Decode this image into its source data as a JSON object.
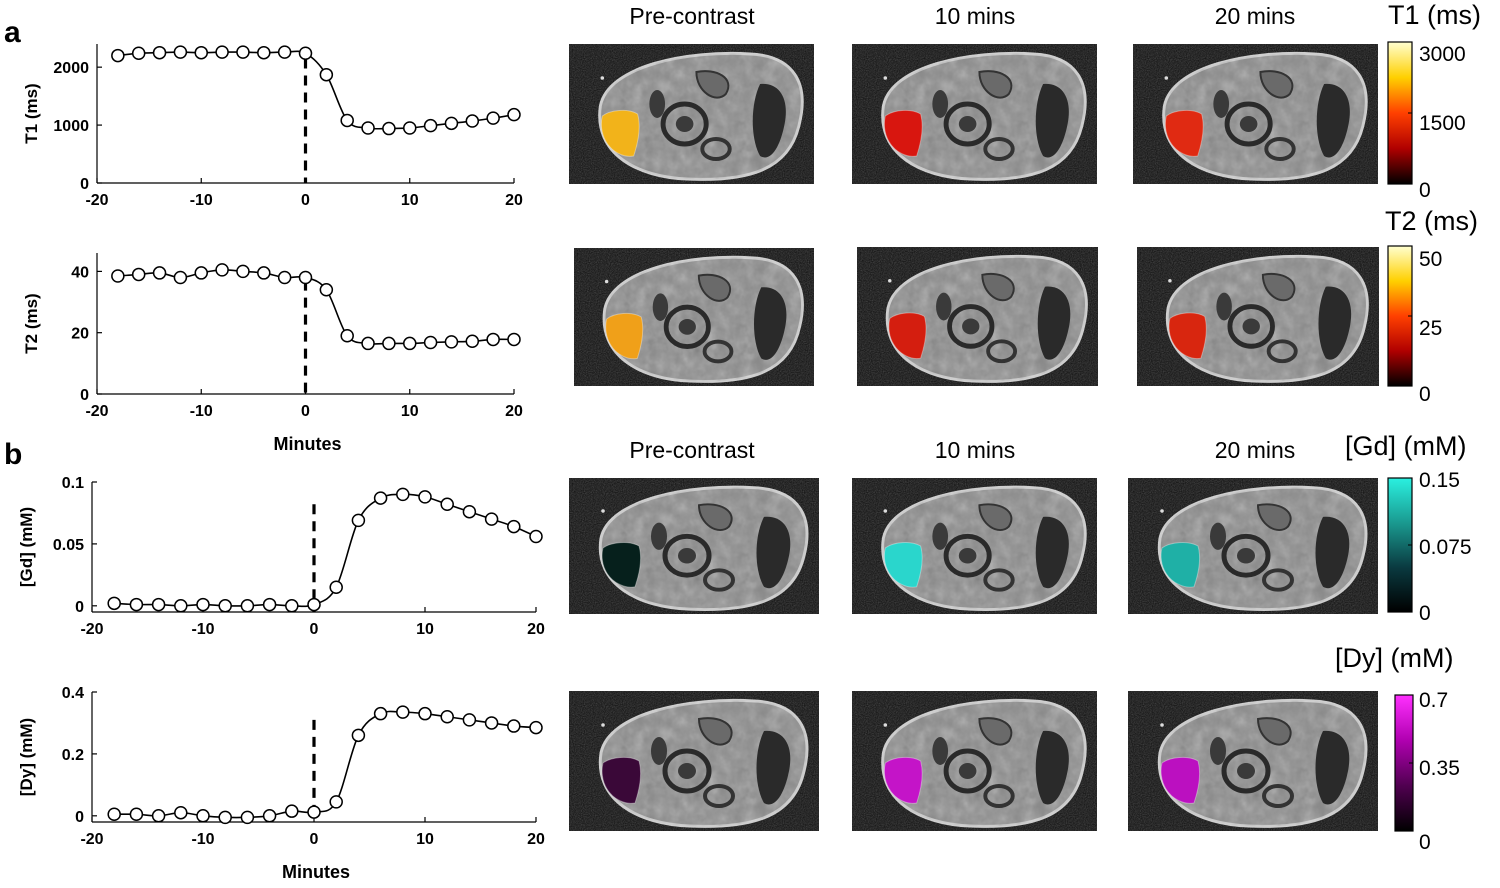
{
  "figure": {
    "panel_labels": [
      "a",
      "b"
    ],
    "image_titles_a": [
      "Pre-contrast",
      "10 mins",
      "20 mins"
    ],
    "image_titles_b": [
      "Pre-contrast",
      "10 mins",
      "20 mins"
    ],
    "image_panels": [
      {
        "name": "t1-pre-contrast",
        "roi_color": "#f2b31a"
      },
      {
        "name": "t1-10-mins",
        "roi_color": "#d8160f"
      },
      {
        "name": "t1-20-mins",
        "roi_color": "#e02a12"
      },
      {
        "name": "t2-pre-contrast",
        "roi_color": "#f0a019"
      },
      {
        "name": "t2-10-mins",
        "roi_color": "#d41e0f"
      },
      {
        "name": "t2-20-mins",
        "roi_color": "#d8260f"
      },
      {
        "name": "gd-pre-contrast",
        "roi_color": "#06201c"
      },
      {
        "name": "gd-10-mins",
        "roi_color": "#2ad6cc"
      },
      {
        "name": "gd-20-mins",
        "roi_color": "#1fb0a6"
      },
      {
        "name": "dy-pre-contrast",
        "roi_color": "#3a0838"
      },
      {
        "name": "dy-10-mins",
        "roi_color": "#c414c8"
      },
      {
        "name": "dy-20-mins",
        "roi_color": "#bb10c0"
      }
    ],
    "colorbars": [
      {
        "name": "t1-colorbar",
        "title": "T1 (ms)",
        "ticks": [
          "3000",
          "1500",
          "0"
        ],
        "colors": [
          "#ffffd0",
          "#ffd000",
          "#ff4000",
          "#b00000",
          "#000000"
        ]
      },
      {
        "name": "t2-colorbar",
        "title": "T2 (ms)",
        "ticks": [
          "50",
          "25",
          "0"
        ],
        "colors": [
          "#ffffd0",
          "#ffd000",
          "#ff4000",
          "#b00000",
          "#000000"
        ]
      },
      {
        "name": "gd-colorbar",
        "title": "[Gd] (mM)",
        "ticks": [
          "0.15",
          "0.075",
          "0"
        ],
        "colors": [
          "#2af0e0",
          "#1a9a90",
          "#0a3a40",
          "#000000"
        ]
      },
      {
        "name": "dy-colorbar",
        "title": "[Dy] (mM)",
        "ticks": [
          "0.7",
          "0.35",
          "0"
        ],
        "colors": [
          "#ff30ff",
          "#b000b0",
          "#500050",
          "#000000"
        ]
      }
    ]
  },
  "chart_data": [
    {
      "type": "line",
      "name": "t1-plot",
      "title": "",
      "xlabel": "",
      "ylabel": "T1 (ms)",
      "xlim": [
        -20,
        20
      ],
      "ylim": [
        0,
        2400
      ],
      "xticks": [
        -20,
        -10,
        0,
        10,
        20
      ],
      "yticks": [
        0,
        1000,
        2000
      ],
      "x": [
        -18,
        -16,
        -14,
        -12,
        -10,
        -8,
        -6,
        -4,
        -2,
        0,
        2,
        4,
        6,
        8,
        10,
        12,
        14,
        16,
        18,
        20
      ],
      "y": [
        2200,
        2240,
        2250,
        2260,
        2250,
        2260,
        2260,
        2250,
        2260,
        2240,
        1870,
        1080,
        950,
        940,
        950,
        990,
        1030,
        1070,
        1120,
        1180
      ],
      "marker_line_x": 0,
      "marker_line_top": 2150
    },
    {
      "type": "line",
      "name": "t2-plot",
      "title": "",
      "xlabel": "Minutes",
      "ylabel": "T2 (ms)",
      "xlim": [
        -20,
        20
      ],
      "ylim": [
        0,
        46
      ],
      "xticks": [
        -20,
        -10,
        0,
        10,
        20
      ],
      "yticks": [
        0,
        20,
        40
      ],
      "x": [
        -18,
        -16,
        -14,
        -12,
        -10,
        -8,
        -6,
        -4,
        -2,
        0,
        2,
        4,
        6,
        8,
        10,
        12,
        14,
        16,
        18,
        20
      ],
      "y": [
        38.5,
        39,
        39.5,
        38,
        39.5,
        40.5,
        40,
        39.5,
        38,
        38,
        34,
        19,
        16.5,
        16.5,
        16.5,
        16.8,
        17,
        17.2,
        17.8,
        17.8
      ],
      "marker_line_x": 0,
      "marker_line_top": 37
    },
    {
      "type": "line",
      "name": "gd-plot",
      "title": "",
      "xlabel": "",
      "ylabel": "[Gd] (mM)",
      "xlim": [
        -20,
        20
      ],
      "ylim": [
        -0.005,
        0.1
      ],
      "xticks": [
        -20,
        -10,
        0,
        10,
        20
      ],
      "yticks": [
        0,
        0.05,
        0.1
      ],
      "ytick_labels": [
        "0",
        "0.05",
        "0.1"
      ],
      "x": [
        -18,
        -16,
        -14,
        -12,
        -10,
        -8,
        -6,
        -4,
        -2,
        0,
        2,
        4,
        6,
        8,
        10,
        12,
        14,
        16,
        18,
        20
      ],
      "y": [
        0.002,
        0.001,
        0.001,
        0.0,
        0.001,
        0.0,
        0.0,
        0.001,
        0.0,
        0.001,
        0.015,
        0.069,
        0.087,
        0.09,
        0.088,
        0.082,
        0.076,
        0.07,
        0.064,
        0.056
      ],
      "marker_line_x": 0,
      "marker_line_top": 0.082
    },
    {
      "type": "line",
      "name": "dy-plot",
      "title": "",
      "xlabel": "Minutes",
      "ylabel": "[Dy] (mM)",
      "xlim": [
        -20,
        20
      ],
      "ylim": [
        -0.02,
        0.4
      ],
      "xticks": [
        -20,
        -10,
        0,
        10,
        20
      ],
      "yticks": [
        0,
        0.2,
        0.4
      ],
      "ytick_labels": [
        "0",
        "0.2",
        "0.4"
      ],
      "x": [
        -18,
        -16,
        -14,
        -12,
        -10,
        -8,
        -6,
        -4,
        -2,
        0,
        2,
        4,
        6,
        8,
        10,
        12,
        14,
        16,
        18,
        20
      ],
      "y": [
        0.005,
        0.005,
        0.0,
        0.01,
        0.0,
        -0.005,
        -0.005,
        0.0,
        0.015,
        0.012,
        0.045,
        0.26,
        0.33,
        0.335,
        0.33,
        0.32,
        0.31,
        0.3,
        0.29,
        0.285
      ],
      "marker_line_x": 0,
      "marker_line_top": 0.31
    }
  ]
}
